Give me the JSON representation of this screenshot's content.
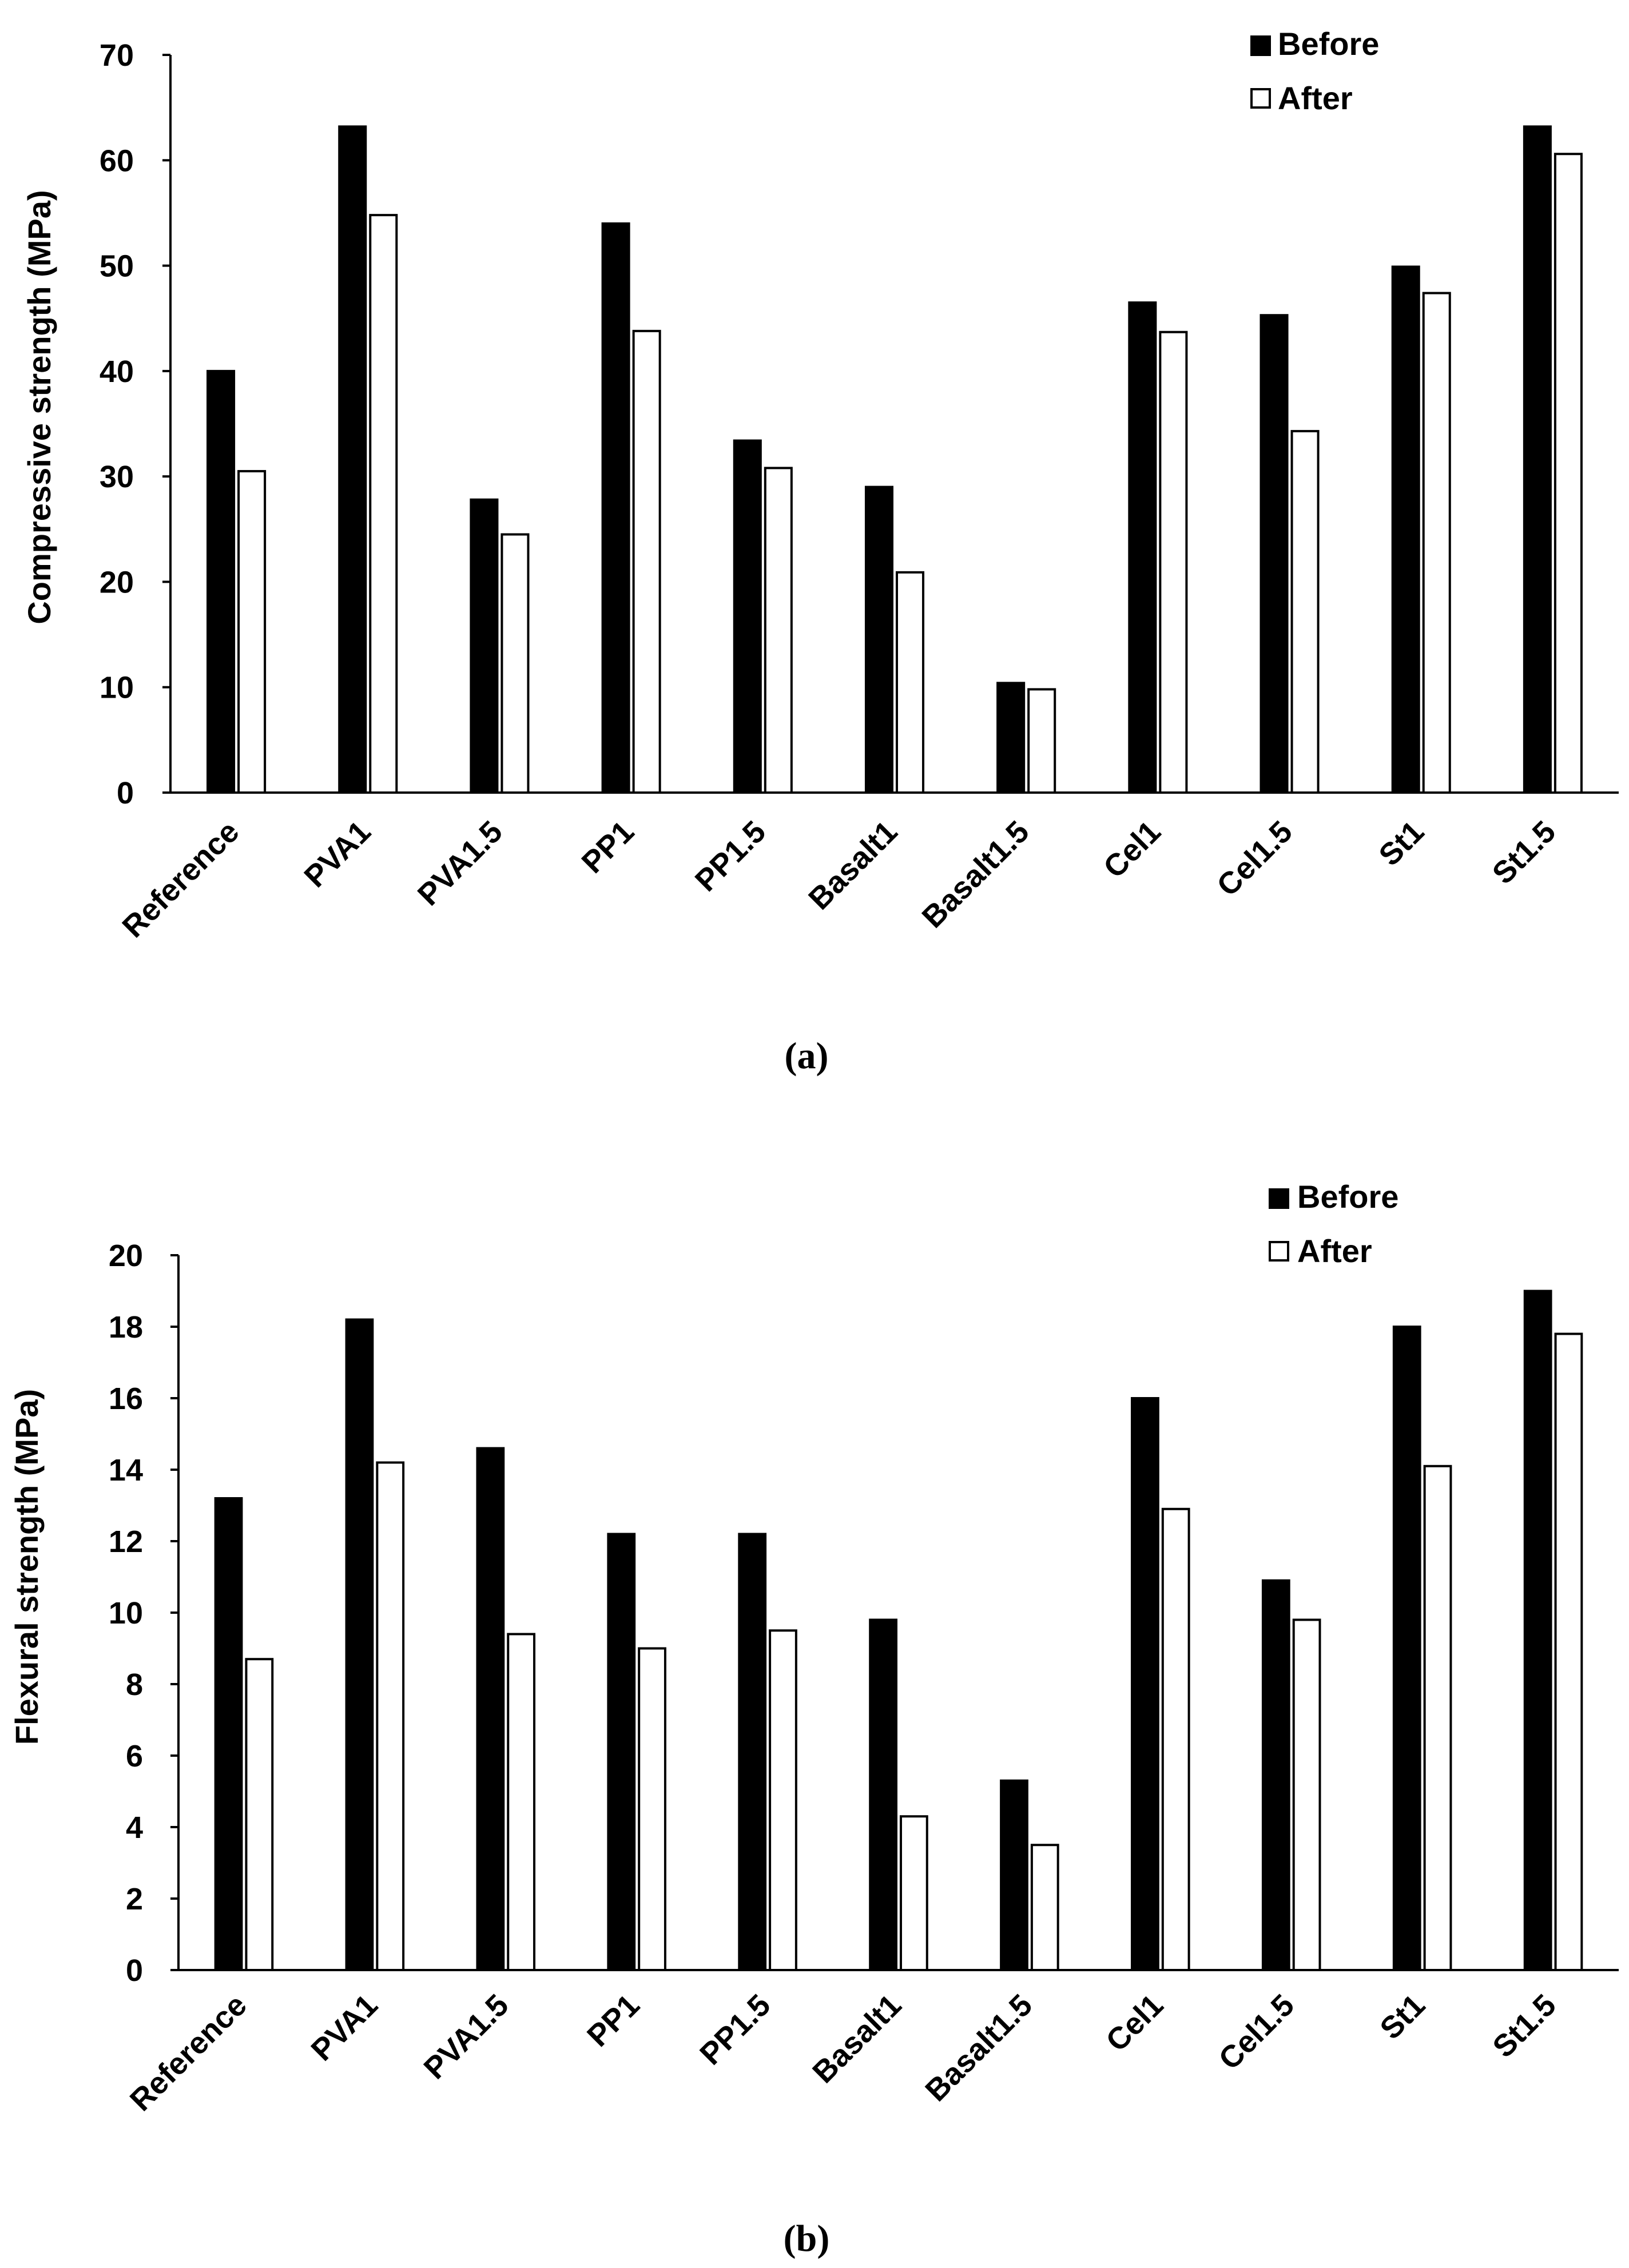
{
  "colors": {
    "before": "#000000",
    "after": "#ffffff",
    "axis": "#000000"
  },
  "chart_data": [
    {
      "type": "bar",
      "caption": "(a)",
      "title": "",
      "xlabel": "",
      "ylabel": "Compressive strength (MPa)",
      "ylim": [
        0,
        70
      ],
      "yticks": [
        0,
        10,
        20,
        30,
        40,
        50,
        60,
        70
      ],
      "grid": false,
      "legend_position": "top-right",
      "categories": [
        "Reference",
        "PVA1",
        "PVA1.5",
        "PP1",
        "PP1.5",
        "Basalt1",
        "Basalt1.5",
        "Cel1",
        "Cel1.5",
        "St1",
        "St1.5"
      ],
      "series": [
        {
          "name": "Before",
          "values": [
            40,
            63.2,
            27.8,
            54,
            33.4,
            29,
            10.4,
            46.5,
            45.3,
            49.9,
            63.2
          ]
        },
        {
          "name": "After",
          "values": [
            30.5,
            54.8,
            24.5,
            43.8,
            30.8,
            20.9,
            9.8,
            43.7,
            34.3,
            47.4,
            60.6
          ]
        }
      ]
    },
    {
      "type": "bar",
      "caption": "(b)",
      "title": "",
      "xlabel": "",
      "ylabel": "Flexural strength (MPa)",
      "ylim": [
        0,
        20
      ],
      "yticks": [
        0,
        2,
        4,
        6,
        8,
        10,
        12,
        14,
        16,
        18,
        20
      ],
      "grid": false,
      "legend_position": "top-right",
      "categories": [
        "Reference",
        "PVA1",
        "PVA1.5",
        "PP1",
        "PP1.5",
        "Basalt1",
        "Basalt1.5",
        "Cel1",
        "Cel1.5",
        "St1",
        "St1.5"
      ],
      "series": [
        {
          "name": "Before",
          "values": [
            13.2,
            18.2,
            14.6,
            12.2,
            12.2,
            9.8,
            5.3,
            16,
            10.9,
            18,
            19
          ]
        },
        {
          "name": "After",
          "values": [
            8.7,
            14.2,
            9.4,
            9,
            9.5,
            4.3,
            3.5,
            12.9,
            9.8,
            14.1,
            17.8
          ]
        }
      ]
    }
  ]
}
